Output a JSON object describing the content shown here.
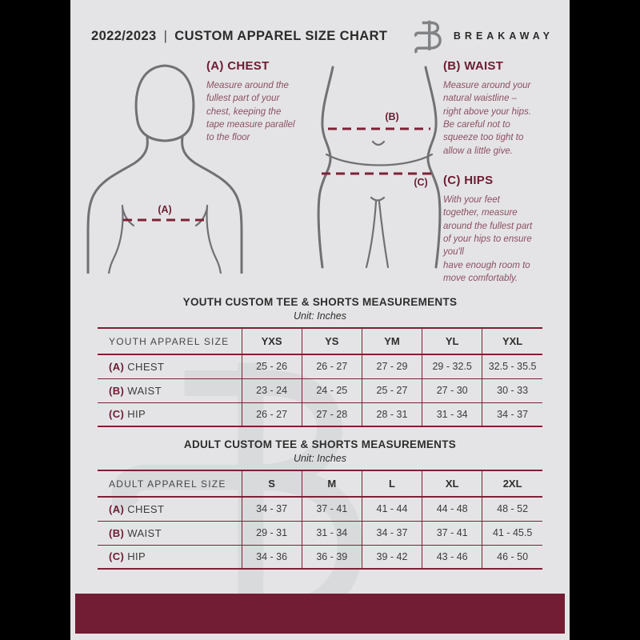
{
  "header": {
    "edition": "2022/2023",
    "separator": "|",
    "title": "CUSTOM APPAREL SIZE CHART",
    "brand": "BREAKAWAY",
    "logo_icon": "breakaway-b-monogram"
  },
  "figure_labels": {
    "chest": "(A)",
    "waist": "(B)",
    "hips": "(C)"
  },
  "sections": {
    "chest": {
      "heading": "(A) CHEST",
      "description": "Measure around the\nfullest part of your\nchest, keeping the\ntape measure parallel\nto the floor"
    },
    "waist": {
      "heading": "(B) WAIST",
      "description": "Measure around your\nnatural waistline –\nright above your hips.\nBe careful not to\nsqueeze too tight to\nallow a little give."
    },
    "hips": {
      "heading": "(C) HIPS",
      "description": "With your feet\ntogether, measure\naround the fullest part\nof your hips to ensure\nyou'll\nhave enough room to\nmove comfortably."
    }
  },
  "youth_table": {
    "title": "YOUTH CUSTOM TEE & SHORTS MEASUREMENTS",
    "unit": "Unit: Inches",
    "size_label": "YOUTH APPAREL SIZE",
    "sizes": [
      "YXS",
      "YS",
      "YM",
      "YL",
      "YXL"
    ],
    "rows": [
      {
        "prefix": "(A)",
        "label": "CHEST",
        "values": [
          "25 - 26",
          "26 - 27",
          "27 - 29",
          "29 - 32.5",
          "32.5 - 35.5"
        ]
      },
      {
        "prefix": "(B)",
        "label": "WAIST",
        "values": [
          "23 - 24",
          "24 - 25",
          "25 - 27",
          "27 - 30",
          "30 - 33"
        ]
      },
      {
        "prefix": "(C)",
        "label": "HIP",
        "values": [
          "26 - 27",
          "27 - 28",
          "28 - 31",
          "31 - 34",
          "34 - 37"
        ]
      }
    ]
  },
  "adult_table": {
    "title": "ADULT CUSTOM TEE & SHORTS MEASUREMENTS",
    "unit": "Unit: Inches",
    "size_label": "ADULT APPAREL SIZE",
    "sizes": [
      "S",
      "M",
      "L",
      "XL",
      "2XL"
    ],
    "rows": [
      {
        "prefix": "(A)",
        "label": "CHEST",
        "values": [
          "34 - 37",
          "37 - 41",
          "41 - 44",
          "44 - 48",
          "48 - 52"
        ]
      },
      {
        "prefix": "(B)",
        "label": "WAIST",
        "values": [
          "29 - 31",
          "31 - 34",
          "34 - 37",
          "37 - 41",
          "41 - 45.5"
        ]
      },
      {
        "prefix": "(C)",
        "label": "HIP",
        "values": [
          "34 - 36",
          "36 - 39",
          "39 - 42",
          "43 - 46",
          "46 - 50"
        ]
      }
    ]
  },
  "colors": {
    "maroon": "#6e1c32",
    "footer_bar": "#721d33",
    "table_line": "#7e2136",
    "page_background": "#e4e4e6",
    "canvas_background": "#000000"
  }
}
